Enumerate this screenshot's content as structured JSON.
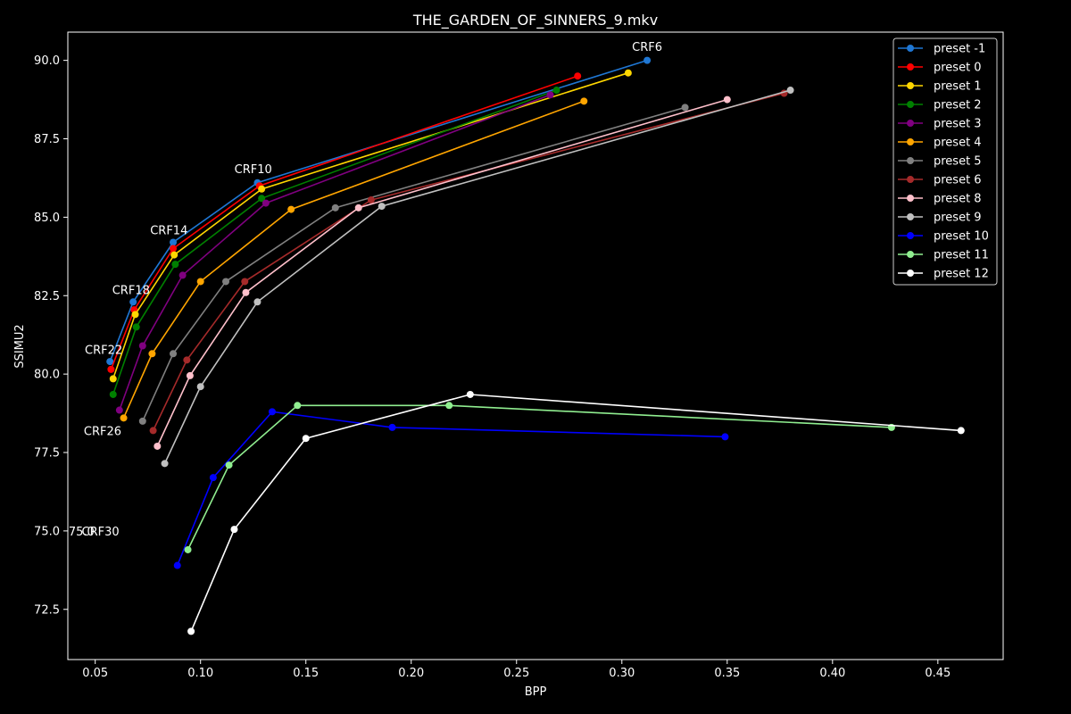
{
  "chart_data": {
    "type": "line",
    "title": "THE_GARDEN_OF_SINNERS_9.mkv",
    "xlabel": "BPP",
    "ylabel": "SSIMU2",
    "xlim": [
      0.037,
      0.481
    ],
    "ylim": [
      70.9,
      90.9
    ],
    "xticks": [
      0.05,
      0.1,
      0.15,
      0.2,
      0.25,
      0.3,
      0.35,
      0.4,
      0.45
    ],
    "xtick_labels": [
      "0.05",
      "0.10",
      "0.15",
      "0.20",
      "0.25",
      "0.30",
      "0.35",
      "0.40",
      "0.45"
    ],
    "yticks": [
      72.5,
      75.0,
      77.5,
      80.0,
      82.5,
      85.0,
      87.5,
      90.0
    ],
    "ytick_labels": [
      "72.5",
      "75.0",
      "77.5",
      "80.0",
      "82.5",
      "85.0",
      "87.5",
      "90.0"
    ],
    "grid": false,
    "legend_position": "top-right",
    "annotations": [
      {
        "text": "CRF6",
        "x": 0.312,
        "y": 90.3
      },
      {
        "text": "CRF10",
        "x": 0.125,
        "y": 86.4
      },
      {
        "text": "CRF14",
        "x": 0.085,
        "y": 84.45
      },
      {
        "text": "CRF18",
        "x": 0.067,
        "y": 82.55
      },
      {
        "text": "CRF22",
        "x": 0.054,
        "y": 80.65
      },
      {
        "text": "CRF26",
        "x": 0.0535,
        "y": 78.05
      },
      {
        "text": "CRF30",
        "x": 0.0525,
        "y": 74.85
      },
      {
        "text": "75.0",
        "x": 0.0435,
        "y": 74.85
      }
    ],
    "series": [
      {
        "name": "preset -1",
        "color": "#1f77d4",
        "x": [
          0.057,
          0.068,
          0.087,
          0.127,
          0.312
        ],
        "y": [
          80.4,
          82.3,
          84.2,
          86.1,
          90.0
        ]
      },
      {
        "name": "preset 0",
        "color": "#ff0000",
        "x": [
          0.0575,
          0.0685,
          0.087,
          0.128,
          0.279
        ],
        "y": [
          80.15,
          82.05,
          84.0,
          86.0,
          89.5
        ]
      },
      {
        "name": "preset 1",
        "color": "#ffd700",
        "x": [
          0.0585,
          0.069,
          0.0875,
          0.129,
          0.303
        ],
        "y": [
          79.85,
          81.9,
          83.8,
          85.9,
          89.6
        ]
      },
      {
        "name": "preset 2",
        "color": "#008000",
        "x": [
          0.0585,
          0.0695,
          0.088,
          0.129,
          0.269
        ],
        "y": [
          79.35,
          81.5,
          83.5,
          85.6,
          89.05
        ]
      },
      {
        "name": "preset 3",
        "color": "#800080",
        "x": [
          0.0615,
          0.0725,
          0.0915,
          0.131,
          0.266
        ],
        "y": [
          78.85,
          80.9,
          83.15,
          85.45,
          88.9
        ]
      },
      {
        "name": "preset 4",
        "color": "#ffa500",
        "x": [
          0.0635,
          0.077,
          0.1,
          0.143,
          0.282
        ],
        "y": [
          78.6,
          80.65,
          82.95,
          85.25,
          88.7
        ]
      },
      {
        "name": "preset 5",
        "color": "#808080",
        "x": [
          0.0725,
          0.087,
          0.112,
          0.164,
          0.33
        ],
        "y": [
          78.5,
          80.65,
          82.95,
          85.3,
          88.5
        ]
      },
      {
        "name": "preset 6",
        "color": "#a52a2a",
        "x": [
          0.0775,
          0.0935,
          0.121,
          0.181,
          0.377
        ],
        "y": [
          78.2,
          80.45,
          82.95,
          85.55,
          88.95
        ]
      },
      {
        "name": "preset 8",
        "color": "#ffc0cb",
        "x": [
          0.0795,
          0.095,
          0.1215,
          0.175,
          0.35
        ],
        "y": [
          77.7,
          79.95,
          82.6,
          85.3,
          88.75
        ]
      },
      {
        "name": "preset 9",
        "color": "#c0c0c0",
        "x": [
          0.083,
          0.1,
          0.127,
          0.186,
          0.38
        ],
        "y": [
          77.15,
          79.6,
          82.3,
          85.35,
          89.05
        ]
      },
      {
        "name": "preset 10",
        "color": "#0000ff",
        "x": [
          0.089,
          0.106,
          0.134,
          0.191,
          0.349
        ],
        "y": [
          73.9,
          76.7,
          78.8,
          78.3,
          78.0
        ]
      },
      {
        "name": "preset 11",
        "color": "#90ee90",
        "x": [
          0.094,
          0.1135,
          0.146,
          0.218,
          0.428
        ],
        "y": [
          74.4,
          77.1,
          79.0,
          79.0,
          78.3
        ]
      },
      {
        "name": "preset 12",
        "color": "#ffffff",
        "x": [
          0.0955,
          0.116,
          0.15,
          0.228,
          0.461
        ],
        "y": [
          71.8,
          75.05,
          77.95,
          79.35,
          78.2
        ]
      }
    ]
  }
}
